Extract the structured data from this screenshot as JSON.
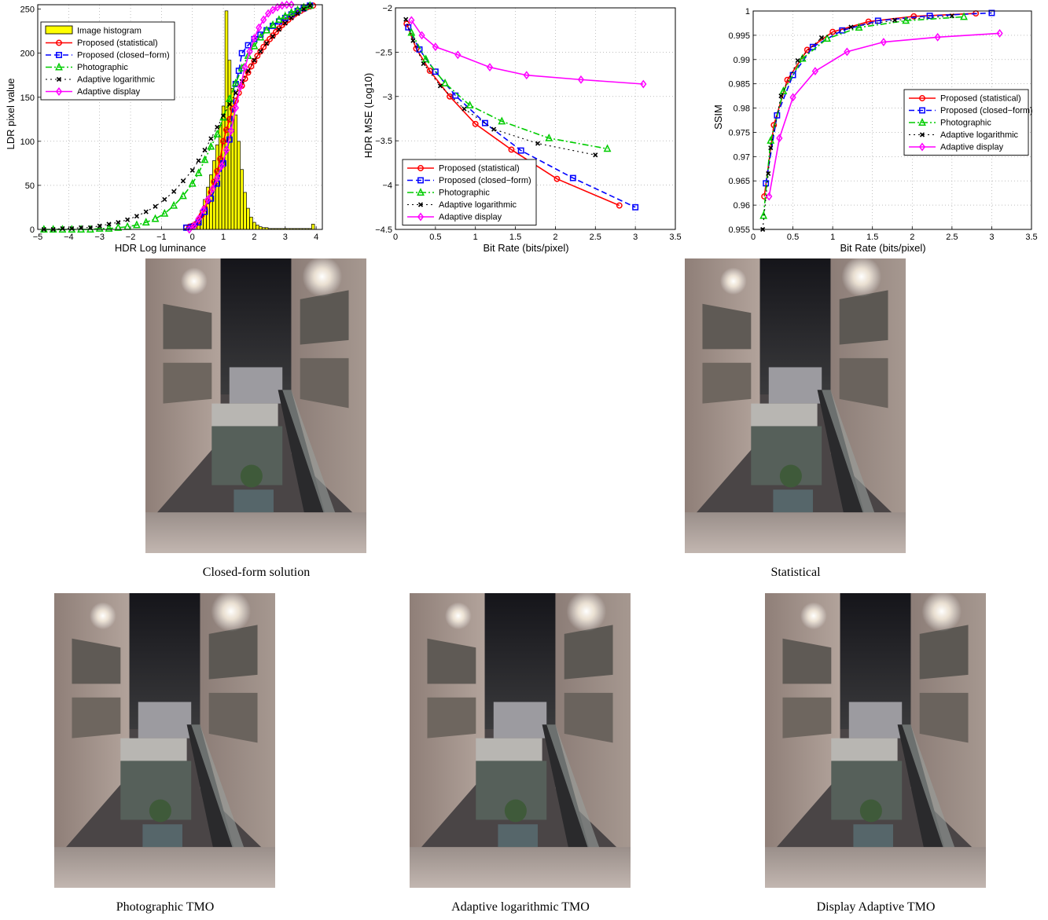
{
  "chart_data": [
    {
      "type": "line",
      "xlabel": "HDR Log luminance",
      "ylabel": "LDR pixel value",
      "xlim": [
        -5,
        4.2
      ],
      "ylim": [
        0,
        255
      ],
      "xticks": [
        "−5",
        "−4",
        "−3",
        "−2",
        "−1",
        "0",
        "1",
        "2",
        "3",
        "4"
      ],
      "yticks": [
        "0",
        "50",
        "100",
        "150",
        "200",
        "250"
      ],
      "grid": true,
      "legend_position": "top-left",
      "histogram": {
        "name": "Image histogram",
        "color": "#ffff00",
        "bins_x": [
          -0.2,
          -0.1,
          0,
          0.1,
          0.2,
          0.3,
          0.4,
          0.5,
          0.6,
          0.7,
          0.8,
          0.9,
          1.0,
          1.1,
          1.2,
          1.3,
          1.4,
          1.5,
          1.6,
          1.7,
          1.8,
          1.9,
          2.0,
          2.1,
          2.2,
          2.3,
          2.4,
          2.5,
          2.6,
          2.7,
          2.8,
          2.9,
          3.0,
          3.1,
          3.2,
          3.3,
          3.4,
          3.5,
          3.6,
          3.7,
          3.8,
          3.9
        ],
        "heights": [
          1,
          2,
          4,
          8,
          14,
          22,
          34,
          48,
          62,
          78,
          96,
          118,
          140,
          248,
          192,
          160,
          130,
          100,
          68,
          42,
          24,
          14,
          8,
          5,
          3,
          2,
          2,
          1,
          1,
          1,
          1,
          1,
          1,
          1,
          1,
          1,
          1,
          1,
          1,
          1,
          1,
          6
        ]
      },
      "series": [
        {
          "name": "Proposed (statistical)",
          "color": "#ff0000",
          "dash": "",
          "marker": "circle",
          "x": [
            -0.2,
            -0.1,
            0.0,
            0.1,
            0.2,
            0.3,
            0.4,
            0.5,
            0.6,
            0.7,
            0.8,
            0.9,
            1.0,
            1.1,
            1.2,
            1.3,
            1.4,
            1.5,
            1.6,
            1.7,
            1.8,
            1.9,
            2.0,
            2.1,
            2.2,
            2.3,
            2.4,
            2.5,
            2.6,
            2.7,
            2.8,
            2.9,
            3.0,
            3.1,
            3.2,
            3.3,
            3.4,
            3.5,
            3.6,
            3.7,
            3.8,
            3.9
          ],
          "y": [
            2,
            3,
            4,
            6,
            10,
            16,
            24,
            32,
            42,
            54,
            66,
            80,
            100,
            113,
            125,
            137,
            146,
            155,
            163,
            171,
            178,
            185,
            191,
            197,
            202,
            207,
            212,
            216,
            220,
            224,
            228,
            232,
            235,
            238,
            241,
            244,
            246,
            248,
            250,
            252,
            253,
            254
          ]
        },
        {
          "name": "Proposed (closed−form)",
          "color": "#0000ff",
          "dash": "7,4",
          "marker": "square",
          "x": [
            -0.2,
            0.0,
            0.2,
            0.4,
            0.6,
            0.8,
            1.0,
            1.2,
            1.4,
            1.5,
            1.6,
            1.8,
            2.0,
            2.2,
            2.4,
            2.6,
            2.8,
            3.0,
            3.2,
            3.4,
            3.6,
            3.8
          ],
          "y": [
            2,
            3,
            8,
            20,
            35,
            52,
            75,
            102,
            165,
            180,
            200,
            209,
            216,
            221,
            226,
            231,
            236,
            240,
            244,
            248,
            251,
            254
          ]
        },
        {
          "name": "Photographic",
          "color": "#00cc00",
          "dash": "8,3,2,3",
          "marker": "triangle",
          "x": [
            -4.8,
            -4.5,
            -4.2,
            -3.9,
            -3.6,
            -3.3,
            -3.0,
            -2.7,
            -2.4,
            -2.1,
            -1.8,
            -1.5,
            -1.2,
            -0.9,
            -0.6,
            -0.3,
            0.0,
            0.2,
            0.4,
            0.6,
            0.8,
            1.0,
            1.2,
            1.4,
            1.6,
            1.8,
            2.0,
            2.2,
            2.4,
            2.6,
            2.8,
            3.0,
            3.2,
            3.4,
            3.6,
            3.8
          ],
          "y": [
            0,
            0,
            0,
            0,
            0,
            0,
            1,
            1,
            2,
            3,
            5,
            8,
            12,
            18,
            27,
            38,
            52,
            64,
            79,
            94,
            108,
            127,
            148,
            166,
            183,
            197,
            208,
            218,
            226,
            232,
            238,
            242,
            246,
            249,
            252,
            254
          ]
        },
        {
          "name": "Adaptive logarithmic",
          "color": "#000000",
          "dash": "2,4",
          "marker": "x",
          "x": [
            -4.8,
            -4.5,
            -4.2,
            -3.9,
            -3.6,
            -3.3,
            -3.0,
            -2.7,
            -2.4,
            -2.1,
            -1.8,
            -1.5,
            -1.2,
            -0.9,
            -0.6,
            -0.3,
            0.0,
            0.2,
            0.4,
            0.6,
            0.8,
            1.0,
            1.2,
            1.4,
            1.6,
            1.8,
            2.0,
            2.2,
            2.4,
            2.6,
            2.8,
            3.0,
            3.2,
            3.4,
            3.6,
            3.8
          ],
          "y": [
            0,
            0,
            1,
            1,
            2,
            2,
            4,
            6,
            8,
            11,
            15,
            20,
            26,
            34,
            43,
            55,
            67,
            78,
            90,
            103,
            116,
            129,
            142,
            155,
            168,
            180,
            192,
            202,
            211,
            219,
            227,
            234,
            240,
            245,
            250,
            254
          ]
        },
        {
          "name": "Adaptive display",
          "color": "#ff00ff",
          "dash": "",
          "marker": "diamond",
          "x": [
            -0.1,
            0.05,
            0.2,
            0.35,
            0.5,
            0.65,
            0.8,
            0.95,
            1.1,
            1.25,
            1.4,
            1.55,
            1.7,
            1.85,
            2.0,
            2.15,
            2.3,
            2.45,
            2.6,
            2.75,
            2.9,
            3.05,
            3.2
          ],
          "y": [
            0,
            4,
            12,
            22,
            34,
            46,
            58,
            72,
            90,
            112,
            138,
            162,
            184,
            202,
            217,
            229,
            238,
            245,
            249,
            252,
            254,
            255,
            255
          ]
        }
      ]
    },
    {
      "type": "line",
      "xlabel": "Bit Rate (bits/pixel)",
      "ylabel": "HDR MSE (Log10)",
      "xlim": [
        0,
        3.5
      ],
      "ylim": [
        -4.5,
        -2
      ],
      "xticks": [
        "0",
        "0.5",
        "1",
        "1.5",
        "2",
        "2.5",
        "3",
        "3.5"
      ],
      "yticks": [
        "−4.5",
        "−4",
        "−3.5",
        "−3",
        "−2.5",
        "−2"
      ],
      "grid": true,
      "legend_position": "bottom-left",
      "series": [
        {
          "name": "Proposed (statistical)",
          "color": "#ff0000",
          "dash": "",
          "marker": "circle",
          "x": [
            0.14,
            0.26,
            0.43,
            0.68,
            1.0,
            1.45,
            2.02,
            2.8
          ],
          "y": [
            -2.18,
            -2.46,
            -2.71,
            -3.0,
            -3.31,
            -3.6,
            -3.93,
            -4.23
          ]
        },
        {
          "name": "Proposed (closed−form)",
          "color": "#0000ff",
          "dash": "7,4",
          "marker": "square",
          "x": [
            0.16,
            0.3,
            0.5,
            0.75,
            1.12,
            1.57,
            2.22,
            3.0
          ],
          "y": [
            -2.22,
            -2.47,
            -2.72,
            -2.99,
            -3.3,
            -3.61,
            -3.92,
            -4.25
          ]
        },
        {
          "name": "Photographic",
          "color": "#00cc00",
          "dash": "8,3,2,3",
          "marker": "triangle",
          "x": [
            0.2,
            0.38,
            0.62,
            0.93,
            1.33,
            1.92,
            2.65
          ],
          "y": [
            -2.28,
            -2.58,
            -2.85,
            -3.1,
            -3.28,
            -3.47,
            -3.59
          ]
        },
        {
          "name": "Adaptive logarithmic",
          "color": "#000000",
          "dash": "2,4",
          "marker": "x",
          "x": [
            0.13,
            0.22,
            0.35,
            0.56,
            0.86,
            1.23,
            1.78,
            2.5
          ],
          "y": [
            -2.13,
            -2.37,
            -2.63,
            -2.88,
            -3.14,
            -3.37,
            -3.53,
            -3.66
          ]
        },
        {
          "name": "Adaptive display",
          "color": "#ff00ff",
          "dash": "",
          "marker": "diamond",
          "x": [
            0.2,
            0.33,
            0.5,
            0.78,
            1.18,
            1.64,
            2.32,
            3.1
          ],
          "y": [
            -2.14,
            -2.31,
            -2.44,
            -2.53,
            -2.67,
            -2.76,
            -2.81,
            -2.86
          ]
        }
      ]
    },
    {
      "type": "line",
      "xlabel": "Bit Rate (bits/pixel)",
      "ylabel": "SSIM",
      "xlim": [
        0,
        3.5
      ],
      "ylim": [
        0.955,
        1
      ],
      "xticks": [
        "0",
        "0.5",
        "1",
        "1.5",
        "2",
        "2.5",
        "3",
        "3.5"
      ],
      "yticks": [
        "0.955",
        "0.96",
        "0.965",
        "0.97",
        "0.975",
        "0.98",
        "0.985",
        "0.99",
        "0.995",
        "1"
      ],
      "grid": true,
      "legend_position": "center-right",
      "series": [
        {
          "name": "Proposed (statistical)",
          "color": "#ff0000",
          "dash": "",
          "marker": "circle",
          "x": [
            0.14,
            0.26,
            0.43,
            0.68,
            1.0,
            1.45,
            2.02,
            2.8
          ],
          "y": [
            0.9618,
            0.9765,
            0.9858,
            0.992,
            0.9957,
            0.9978,
            0.9989,
            0.9995
          ]
        },
        {
          "name": "Proposed (closed−form)",
          "color": "#0000ff",
          "dash": "7,4",
          "marker": "square",
          "x": [
            0.16,
            0.3,
            0.5,
            0.75,
            1.12,
            1.57,
            2.22,
            3.0
          ],
          "y": [
            0.9645,
            0.9785,
            0.9868,
            0.9926,
            0.996,
            0.998,
            0.999,
            0.9996
          ]
        },
        {
          "name": "Photographic",
          "color": "#00cc00",
          "dash": "8,3,2,3",
          "marker": "triangle",
          "x": [
            0.13,
            0.22,
            0.38,
            0.62,
            0.93,
            1.33,
            1.92,
            2.65
          ],
          "y": [
            0.9578,
            0.9733,
            0.9835,
            0.9902,
            0.9943,
            0.9966,
            0.998,
            0.9988
          ]
        },
        {
          "name": "Adaptive logarithmic",
          "color": "#000000",
          "dash": "2,4",
          "marker": "x",
          "x": [
            0.12,
            0.19,
            0.22,
            0.35,
            0.56,
            0.86,
            1.23,
            1.78,
            2.5
          ],
          "y": [
            0.955,
            0.9665,
            0.9718,
            0.9825,
            0.9898,
            0.9945,
            0.9967,
            0.9981,
            0.999
          ]
        },
        {
          "name": "Adaptive display",
          "color": "#ff00ff",
          "dash": "",
          "marker": "diamond",
          "x": [
            0.2,
            0.33,
            0.5,
            0.78,
            1.18,
            1.64,
            2.32,
            3.1
          ],
          "y": [
            0.9618,
            0.9738,
            0.9822,
            0.9876,
            0.9916,
            0.9936,
            0.9946,
            0.9954
          ]
        }
      ]
    }
  ],
  "captions": {
    "closed_form": "Closed-form solution",
    "statistical": "Statistical",
    "photographic": "Photographic TMO",
    "adaptive_log": "Adaptive logarithmic TMO",
    "display_adaptive": "Display Adaptive TMO"
  }
}
